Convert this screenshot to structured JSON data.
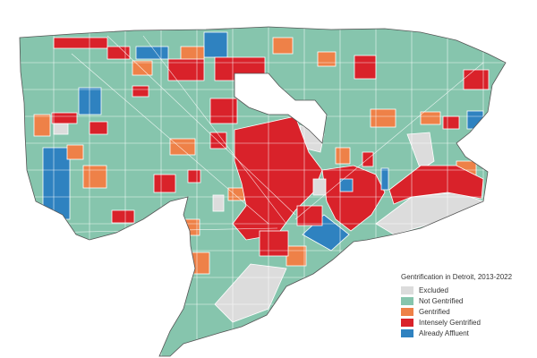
{
  "legend": {
    "title": "Gentrification in Detroit, 2013-2022",
    "items": [
      {
        "key": "excluded",
        "label": "Excluded",
        "color": "#dcdcdc"
      },
      {
        "key": "not",
        "label": "Not Gentrified",
        "color": "#86c5ad"
      },
      {
        "key": "gent",
        "label": "Gentrified",
        "color": "#ee8148"
      },
      {
        "key": "intense",
        "label": "Intensely Gentrified",
        "color": "#d9222a"
      },
      {
        "key": "affluent",
        "label": "Already Affluent",
        "color": "#2f82c0"
      }
    ]
  }
}
